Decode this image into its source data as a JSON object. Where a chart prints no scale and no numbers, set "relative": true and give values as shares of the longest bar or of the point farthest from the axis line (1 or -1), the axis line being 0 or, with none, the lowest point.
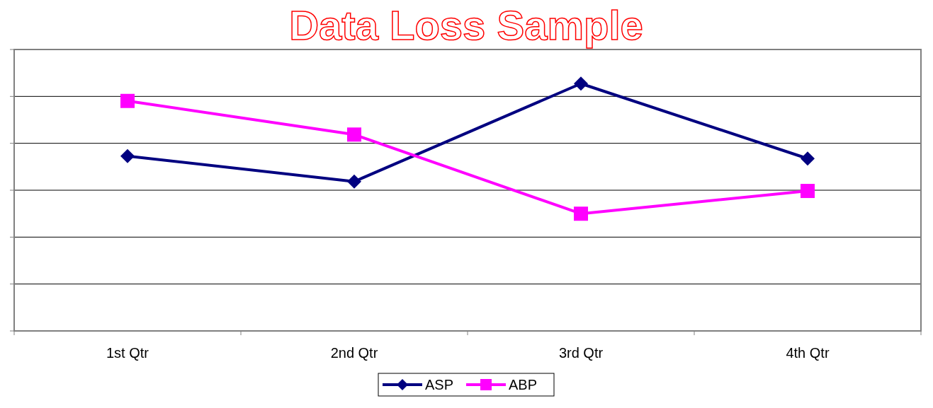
{
  "chart_data": {
    "type": "line",
    "title": "Data Loss Sample",
    "relative": true,
    "grid": "y",
    "legend": "bottom",
    "categories": [
      "1st Qtr",
      "2nd Qtr",
      "3rd Qtr",
      "4th Qtr"
    ],
    "series": [
      {
        "name": "ASP",
        "color": "#000080",
        "marker": "diamond",
        "values": [
          0.707,
          0.604,
          1,
          0.697
        ]
      },
      {
        "name": "ABP",
        "color": "#ff00ff",
        "marker": "square",
        "values": [
          0.93,
          0.794,
          0.474,
          0.566
        ]
      }
    ]
  }
}
